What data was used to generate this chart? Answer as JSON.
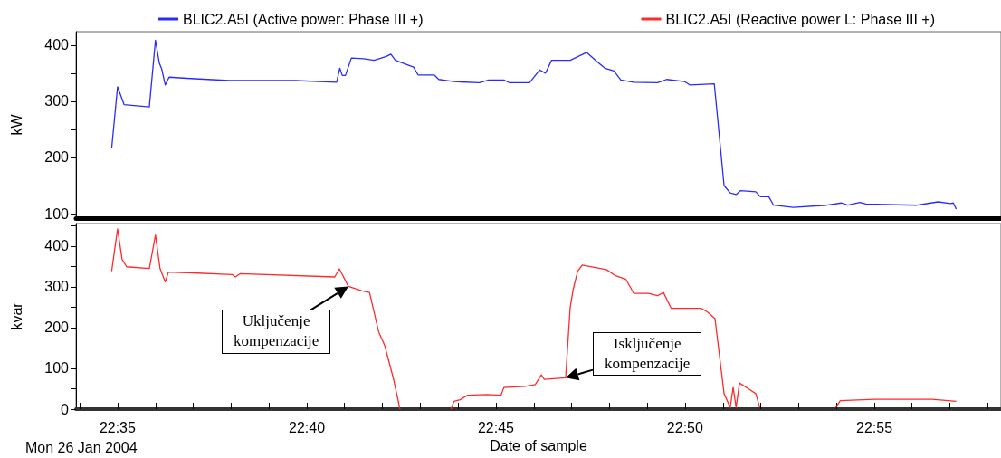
{
  "chart_data": [
    {
      "type": "line",
      "ylabel": "kW",
      "xlim": [
        22.565,
        22.9725
      ],
      "ylim": [
        92,
        424
      ],
      "yticks": [
        100,
        {
          "value": 150,
          "label": null
        },
        200,
        {
          "value": 250,
          "label": null
        },
        300,
        {
          "value": 350,
          "label": null
        },
        400
      ],
      "tick_labels": "y",
      "legend": "top left",
      "marker": "none",
      "line_style": "solid",
      "series": [
        {
          "name": "BLIC2.A5I (Active power: Phase III +)",
          "color": "#2a2aff",
          "x": [
            22.5807,
            22.5833,
            22.5862,
            22.5973,
            22.6,
            22.6017,
            22.6028,
            22.6043,
            22.606,
            22.6138,
            22.6325,
            22.6617,
            22.6798,
            22.6812,
            22.6823,
            22.6837,
            22.6863,
            22.6917,
            22.6963,
            22.7017,
            22.7037,
            22.7057,
            22.711,
            22.7137,
            22.7157,
            22.7228,
            22.7248,
            22.7315,
            22.7428,
            22.7468,
            22.7535,
            22.756,
            22.7648,
            22.7693,
            22.7718,
            22.7745,
            22.7827,
            22.79,
            22.7947,
            22.798,
            22.802,
            22.805,
            22.8107,
            22.8212,
            22.8252,
            22.8332,
            22.8355,
            22.8462,
            22.8505,
            22.8532,
            22.8558,
            22.8578,
            22.8645,
            22.8665,
            22.8702,
            22.8723,
            22.881,
            22.8957,
            22.9023,
            22.905,
            22.9103,
            22.913,
            22.9355,
            22.9448,
            22.9502,
            22.9515,
            22.9528
          ],
          "values": [
            216,
            326,
            294,
            290,
            409,
            368,
            357,
            329,
            343,
            341,
            337,
            337,
            334,
            359,
            346,
            346,
            377,
            376,
            373,
            380,
            384,
            373,
            365,
            361,
            347,
            347,
            339,
            335,
            333,
            338,
            338,
            333,
            333,
            356,
            350,
            373,
            373,
            387,
            370,
            359,
            354,
            338,
            334,
            333,
            339,
            335,
            329,
            331,
            150,
            137,
            134,
            141,
            139,
            130,
            130,
            115,
            111,
            115,
            119,
            115,
            120,
            117,
            115,
            121,
            118,
            119,
            108
          ]
        }
      ]
    },
    {
      "type": "line",
      "xlabel": "Date of sample",
      "ylabel": "kvar",
      "xlim": [
        22.565,
        22.9725
      ],
      "ylim": [
        0,
        455
      ],
      "xticks": [
        {
          "value": 22.5667,
          "label": null
        },
        {
          "value": 22.5833,
          "label": "22:35"
        },
        {
          "value": 22.6,
          "label": null
        },
        {
          "value": 22.6167,
          "label": null
        },
        {
          "value": 22.6333,
          "label": null
        },
        {
          "value": 22.65,
          "label": null
        },
        {
          "value": 22.6667,
          "label": "22:40"
        },
        {
          "value": 22.6833,
          "label": null
        },
        {
          "value": 22.7,
          "label": null
        },
        {
          "value": 22.7167,
          "label": null
        },
        {
          "value": 22.7333,
          "label": null
        },
        {
          "value": 22.75,
          "label": "22:45"
        },
        {
          "value": 22.7667,
          "label": null
        },
        {
          "value": 22.7833,
          "label": null
        },
        {
          "value": 22.8,
          "label": null
        },
        {
          "value": 22.8167,
          "label": null
        },
        {
          "value": 22.8333,
          "label": "22:50"
        },
        {
          "value": 22.85,
          "label": null
        },
        {
          "value": 22.8667,
          "label": null
        },
        {
          "value": 22.8833,
          "label": null
        },
        {
          "value": 22.9,
          "label": null
        },
        {
          "value": 22.9167,
          "label": "22:55"
        },
        {
          "value": 22.9333,
          "label": null
        },
        {
          "value": 22.95,
          "label": null
        },
        {
          "value": 22.9667,
          "label": null
        }
      ],
      "yticks": [
        0,
        {
          "value": 50,
          "label": null
        },
        100,
        {
          "value": 150,
          "label": null
        },
        200,
        {
          "value": 250,
          "label": null
        },
        300,
        {
          "value": 350,
          "label": null
        },
        400,
        {
          "value": 450,
          "label": null
        }
      ],
      "legend": "top right",
      "marker": "none",
      "line_style": "solid",
      "annotations": [
        {
          "text": "Uključenje kompenzacije",
          "x": 22.685,
          "y": 301
        },
        {
          "text": "Isključenje kompenzacije",
          "x": 22.7807,
          "y": 77
        },
        "Mon 26 Jan 2004"
      ],
      "series": [
        {
          "name": "BLIC2.A5I (Reactive power L: Phase III +)",
          "color": "#ff2a2a",
          "x": [
            22.5807,
            22.5833,
            22.5853,
            22.5873,
            22.5973,
            22.6,
            22.602,
            22.6043,
            22.6057,
            22.6165,
            22.6338,
            22.6352,
            22.6372,
            22.679,
            22.681,
            22.685,
            22.691,
            22.6943,
            22.6983,
            22.701,
            22.705,
            22.7077,
            22.7167,
            22.7302,
            22.7315,
            22.7342,
            22.7375,
            22.7462,
            22.7522,
            22.7535,
            22.7628,
            22.7673,
            22.77,
            22.7713,
            22.7807,
            22.7827,
            22.784,
            22.786,
            22.788,
            22.7987,
            22.8027,
            22.8073,
            22.8107,
            22.8172,
            22.8212,
            22.8238,
            22.8272,
            22.8405,
            22.8432,
            22.8465,
            22.8505,
            22.8532,
            22.8545,
            22.8558,
            22.8573,
            22.8612,
            22.8645,
            22.8662,
            22.8833,
            22.8997,
            22.9017,
            22.9168,
            22.9315,
            22.9422,
            22.9528
          ],
          "values": [
            338,
            442,
            367,
            349,
            345,
            427,
            345,
            312,
            336,
            334,
            330,
            324,
            332,
            324,
            344,
            301,
            290,
            286,
            190,
            156,
            71,
            0,
            null,
            0,
            19,
            23,
            34,
            36,
            34,
            53,
            56,
            60,
            84,
            73,
            77,
            249,
            293,
            338,
            353,
            342,
            327,
            318,
            284,
            284,
            278,
            286,
            247,
            247,
            238,
            222,
            38,
            4,
            53,
            4,
            64,
            50,
            38,
            4,
            null,
            4,
            21,
            24,
            24,
            24,
            19
          ]
        }
      ]
    }
  ]
}
